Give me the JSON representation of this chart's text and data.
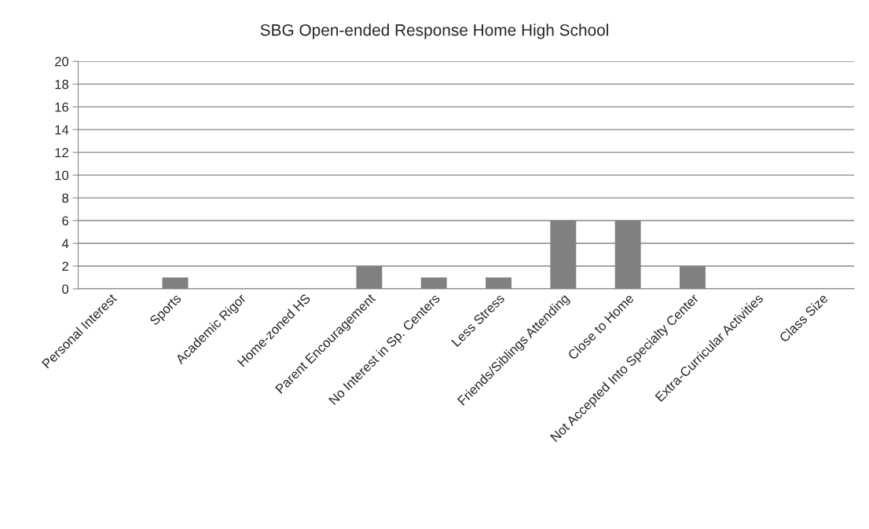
{
  "chart_data": {
    "type": "bar",
    "title": "SBG Open-ended Response Home High School",
    "categories": [
      "Personal Interest",
      "Sports",
      "Academic Rigor",
      "Home-zoned HS",
      "Parent Encouragement",
      "No Interest in Sp. Centers",
      "Less Stress",
      "Friends/Siblings Attending",
      "Close to Home",
      "Not Accepted Into Specialty Center",
      "Extra-Curricular Activities",
      "Class Size"
    ],
    "values": [
      0,
      1,
      0,
      0,
      2,
      1,
      1,
      6,
      6,
      2,
      0,
      0
    ],
    "color": "#808080",
    "ylim": [
      0,
      20
    ],
    "yticks": [
      0,
      2,
      4,
      6,
      8,
      10,
      12,
      14,
      16,
      18,
      20
    ],
    "grid": "y",
    "legend": false
  }
}
